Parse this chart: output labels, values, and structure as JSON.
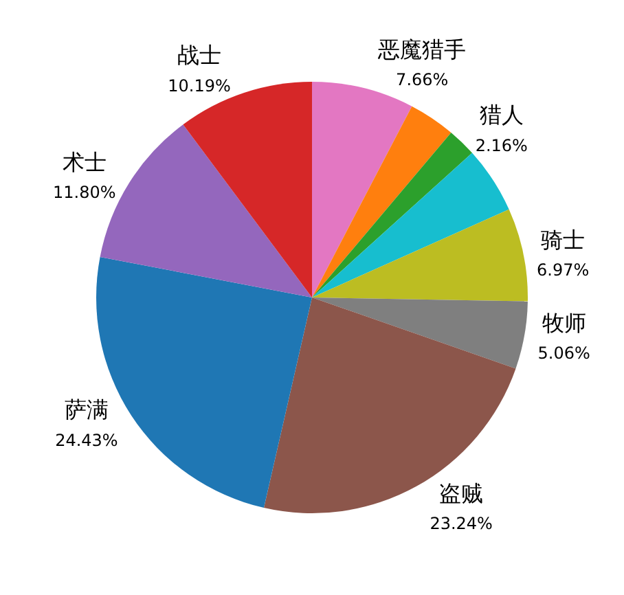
{
  "chart_data": {
    "type": "pie",
    "categories": [
      "恶魔猎手",
      null,
      "猎人",
      null,
      "骑士",
      "牧师",
      "盗贼",
      "萨满",
      "术士",
      "战士"
    ],
    "values": [
      7.66,
      3.49,
      2.16,
      5.0,
      6.97,
      5.06,
      23.24,
      24.43,
      11.8,
      10.19
    ],
    "value_labels": [
      "7.66%",
      null,
      "2.16%",
      null,
      "6.97%",
      "5.06%",
      "23.24%",
      "24.43%",
      "11.80%",
      "10.19%"
    ],
    "colors": [
      "#e377c2",
      "#ff7f0e",
      "#2ca02c",
      "#17becf",
      "#bcbd22",
      "#7f7f7f",
      "#8c564b",
      "#1f77b4",
      "#9467bd",
      "#d62728"
    ],
    "legend": false
  }
}
